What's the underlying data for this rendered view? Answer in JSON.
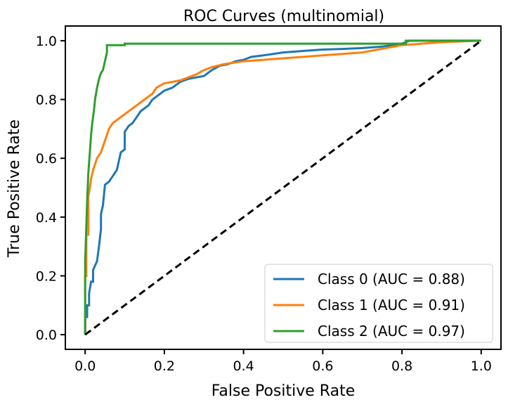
{
  "chart_data": {
    "type": "line",
    "title": "ROC Curves (multinomial)",
    "xlabel": "False Positive Rate",
    "ylabel": "True Positive Rate",
    "xlim": [
      -0.05,
      1.05
    ],
    "ylim": [
      -0.05,
      1.05
    ],
    "xticks": [
      "0.0",
      "0.2",
      "0.4",
      "0.6",
      "0.8",
      "1.0"
    ],
    "yticks": [
      "0.0",
      "0.2",
      "0.4",
      "0.6",
      "0.8",
      "1.0"
    ],
    "grid": false,
    "legend_position": "lower-right",
    "series": [
      {
        "name": "Class 0 (AUC = 0.88)",
        "color": "#1f77b4",
        "x": [
          0.0,
          0.0,
          0.005,
          0.005,
          0.01,
          0.01,
          0.015,
          0.02,
          0.02,
          0.03,
          0.035,
          0.04,
          0.04,
          0.045,
          0.05,
          0.06,
          0.07,
          0.08,
          0.085,
          0.09,
          0.1,
          0.1,
          0.11,
          0.12,
          0.13,
          0.14,
          0.15,
          0.16,
          0.17,
          0.18,
          0.19,
          0.2,
          0.22,
          0.24,
          0.26,
          0.28,
          0.3,
          0.32,
          0.34,
          0.36,
          0.38,
          0.4,
          0.42,
          0.45,
          0.5,
          0.55,
          0.6,
          0.65,
          0.7,
          0.75,
          0.8,
          0.82,
          1.0
        ],
        "y": [
          0.0,
          0.06,
          0.06,
          0.1,
          0.1,
          0.14,
          0.18,
          0.18,
          0.22,
          0.25,
          0.3,
          0.36,
          0.41,
          0.44,
          0.51,
          0.52,
          0.54,
          0.56,
          0.59,
          0.62,
          0.63,
          0.69,
          0.71,
          0.72,
          0.74,
          0.76,
          0.77,
          0.78,
          0.8,
          0.81,
          0.82,
          0.83,
          0.84,
          0.86,
          0.87,
          0.875,
          0.88,
          0.9,
          0.915,
          0.92,
          0.93,
          0.935,
          0.945,
          0.95,
          0.96,
          0.965,
          0.97,
          0.972,
          0.975,
          0.98,
          0.99,
          1.0,
          1.0
        ]
      },
      {
        "name": "Class 1 (AUC = 0.91)",
        "color": "#ff7f0e",
        "x": [
          0.0,
          0.0,
          0.003,
          0.003,
          0.008,
          0.008,
          0.012,
          0.015,
          0.02,
          0.025,
          0.03,
          0.035,
          0.04,
          0.045,
          0.05,
          0.055,
          0.06,
          0.07,
          0.08,
          0.09,
          0.1,
          0.11,
          0.12,
          0.13,
          0.14,
          0.15,
          0.16,
          0.17,
          0.18,
          0.2,
          0.22,
          0.24,
          0.26,
          0.28,
          0.3,
          0.32,
          0.35,
          0.4,
          0.45,
          0.5,
          0.6,
          0.7,
          0.8,
          0.85,
          0.9,
          1.0
        ],
        "y": [
          0.0,
          0.2,
          0.2,
          0.34,
          0.34,
          0.47,
          0.5,
          0.53,
          0.56,
          0.58,
          0.6,
          0.61,
          0.62,
          0.64,
          0.66,
          0.68,
          0.7,
          0.72,
          0.73,
          0.74,
          0.75,
          0.76,
          0.77,
          0.78,
          0.79,
          0.8,
          0.81,
          0.82,
          0.84,
          0.855,
          0.86,
          0.865,
          0.875,
          0.885,
          0.9,
          0.91,
          0.92,
          0.93,
          0.935,
          0.94,
          0.95,
          0.96,
          0.985,
          0.99,
          0.995,
          1.0
        ]
      },
      {
        "name": "Class 2 (AUC = 0.97)",
        "color": "#2ca02c",
        "x": [
          0.0,
          0.0,
          0.005,
          0.008,
          0.012,
          0.015,
          0.018,
          0.022,
          0.025,
          0.03,
          0.035,
          0.04,
          0.045,
          0.05,
          0.055,
          0.055,
          0.1,
          0.1,
          0.81,
          0.81,
          1.0
        ],
        "y": [
          0.0,
          0.25,
          0.45,
          0.55,
          0.62,
          0.68,
          0.72,
          0.76,
          0.8,
          0.84,
          0.87,
          0.89,
          0.9,
          0.93,
          0.96,
          0.985,
          0.985,
          0.99,
          0.99,
          1.0,
          1.0
        ]
      },
      {
        "name": "",
        "color": "#000000",
        "dash": true,
        "x": [
          0.0,
          1.0
        ],
        "y": [
          0.0,
          1.0
        ]
      }
    ]
  }
}
